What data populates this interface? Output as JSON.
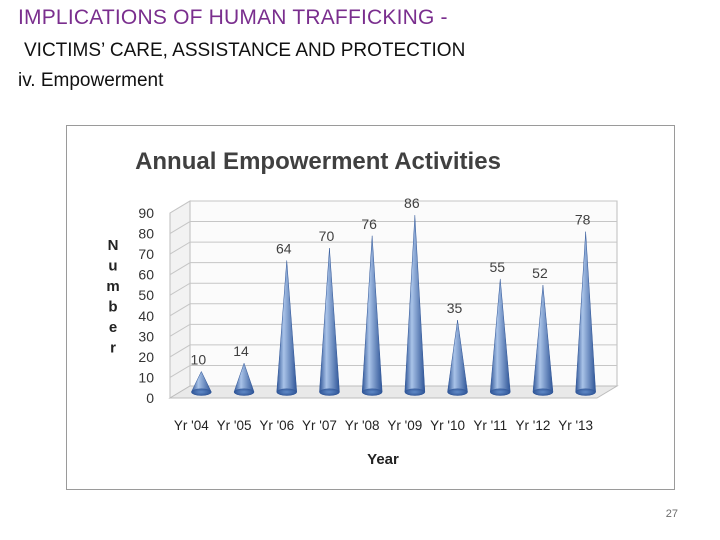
{
  "slide": {
    "title": "IMPLICATIONS OF HUMAN TRAFFICKING -",
    "subtitle": "VICTIMS’ CARE, ASSISTANCE AND PROTECTION",
    "section": "iv. Empowerment",
    "page_number": "27"
  },
  "colors": {
    "title": "#7a2e8e",
    "bar_light": "#a9c3e8",
    "bar_mid": "#5b86c5",
    "bar_dark": "#2f5597"
  },
  "chart_data": {
    "type": "bar",
    "title": "Annual Empowerment Activities",
    "xlabel": "Year",
    "ylabel": "Number",
    "categories": [
      "Yr '04",
      "Yr '05",
      "Yr '06",
      "Yr '07",
      "Yr '08",
      "Yr '09",
      "Yr '10",
      "Yr '11",
      "Yr '12",
      "Yr '13"
    ],
    "values": [
      10,
      14,
      64,
      70,
      76,
      86,
      35,
      55,
      52,
      78
    ],
    "yticks": [
      0,
      10,
      20,
      30,
      40,
      50,
      60,
      70,
      80,
      90
    ],
    "ylim": [
      0,
      90
    ],
    "grid": true,
    "legend": "none",
    "bar_shape": "3d-cone"
  }
}
